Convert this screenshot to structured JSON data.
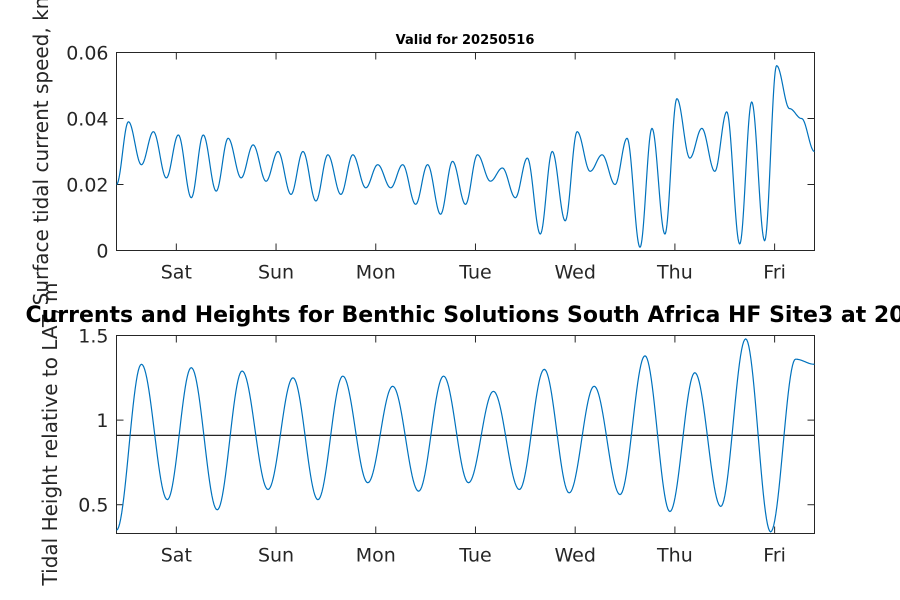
{
  "chart_data": [
    {
      "type": "line",
      "title": "Valid for 20250516",
      "ylabel": "Surface tidal current speed, kn",
      "ylim": [
        0,
        0.06
      ],
      "yticks": [
        {
          "value": 0,
          "label": "0"
        },
        {
          "value": 0.02,
          "label": "0.02"
        },
        {
          "value": 0.04,
          "label": "0.04"
        },
        {
          "value": 0.06,
          "label": "0.06"
        }
      ],
      "xlim_days": [
        0,
        7.0
      ],
      "xticks": [
        {
          "day": 0.6,
          "label": "Sat"
        },
        {
          "day": 1.6,
          "label": "Sun"
        },
        {
          "day": 2.6,
          "label": "Mon"
        },
        {
          "day": 3.6,
          "label": "Tue"
        },
        {
          "day": 4.6,
          "label": "Wed"
        },
        {
          "day": 5.6,
          "label": "Thu"
        },
        {
          "day": 6.6,
          "label": "Fri"
        }
      ],
      "series": [
        {
          "color": "#0072BD",
          "x": [
            0.0,
            0.12,
            0.25,
            0.37,
            0.5,
            0.62,
            0.75,
            0.87,
            1.0,
            1.12,
            1.25,
            1.37,
            1.5,
            1.62,
            1.75,
            1.87,
            2.0,
            2.12,
            2.25,
            2.37,
            2.5,
            2.62,
            2.75,
            2.87,
            3.0,
            3.12,
            3.25,
            3.37,
            3.5,
            3.62,
            3.75,
            3.87,
            4.0,
            4.12,
            4.25,
            4.37,
            4.5,
            4.62,
            4.75,
            4.87,
            5.0,
            5.12,
            5.25,
            5.37,
            5.5,
            5.62,
            5.75,
            5.87,
            6.0,
            6.12,
            6.25,
            6.37,
            6.5,
            6.62,
            6.75,
            6.87,
            7.0
          ],
          "y": [
            0.02,
            0.039,
            0.026,
            0.036,
            0.022,
            0.035,
            0.016,
            0.035,
            0.018,
            0.034,
            0.022,
            0.032,
            0.021,
            0.03,
            0.017,
            0.03,
            0.015,
            0.029,
            0.017,
            0.029,
            0.019,
            0.026,
            0.019,
            0.026,
            0.014,
            0.026,
            0.011,
            0.027,
            0.014,
            0.029,
            0.021,
            0.025,
            0.016,
            0.028,
            0.005,
            0.03,
            0.009,
            0.036,
            0.024,
            0.029,
            0.02,
            0.034,
            0.001,
            0.037,
            0.005,
            0.046,
            0.028,
            0.037,
            0.024,
            0.042,
            0.002,
            0.045,
            0.003,
            0.056,
            0.043,
            0.04,
            0.03
          ]
        }
      ]
    },
    {
      "type": "line",
      "title": "Currents and Heights for Benthic Solutions South Africa HF Site3 at 20",
      "ylabel": "Tidal Height relative to LAT, m",
      "ylim": [
        0.33,
        1.5
      ],
      "yticks": [
        {
          "value": 0.5,
          "label": "0.5"
        },
        {
          "value": 1.0,
          "label": "1"
        },
        {
          "value": 1.5,
          "label": "1.5"
        }
      ],
      "xlim_days": [
        0,
        7.0
      ],
      "xticks": [
        {
          "day": 0.6,
          "label": "Sat"
        },
        {
          "day": 1.6,
          "label": "Sun"
        },
        {
          "day": 2.6,
          "label": "Mon"
        },
        {
          "day": 3.6,
          "label": "Tue"
        },
        {
          "day": 4.6,
          "label": "Wed"
        },
        {
          "day": 5.6,
          "label": "Thu"
        },
        {
          "day": 6.6,
          "label": "Fri"
        }
      ],
      "reference_line": 0.91,
      "series": [
        {
          "color": "#0072BD",
          "x": [
            0.0,
            0.25,
            0.51,
            0.75,
            1.01,
            1.26,
            1.52,
            1.77,
            2.02,
            2.27,
            2.52,
            2.77,
            3.03,
            3.28,
            3.53,
            3.78,
            4.04,
            4.29,
            4.54,
            4.79,
            5.05,
            5.3,
            5.55,
            5.8,
            6.06,
            6.31,
            6.56,
            6.81,
            7.0
          ],
          "y": [
            0.35,
            1.33,
            0.53,
            1.31,
            0.47,
            1.29,
            0.59,
            1.25,
            0.53,
            1.26,
            0.63,
            1.2,
            0.58,
            1.26,
            0.63,
            1.17,
            0.59,
            1.3,
            0.57,
            1.2,
            0.56,
            1.38,
            0.46,
            1.28,
            0.49,
            1.48,
            0.34,
            1.36,
            1.33
          ]
        }
      ]
    }
  ]
}
